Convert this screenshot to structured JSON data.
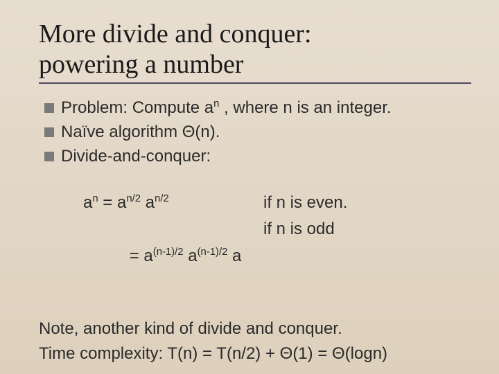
{
  "colors": {
    "background_top": "#e8ded0",
    "background_bottom": "#ddd0bc",
    "title_color": "#1a1a1a",
    "rule_color": "#4a4a5a",
    "bullet_marker": "#7a7a7a",
    "text_color": "#2a2a2a"
  },
  "typography": {
    "title_font": "Times New Roman",
    "title_fontsize_pt": 28,
    "body_font": "Arial",
    "body_fontsize_pt": 18,
    "sup_scale": 0.62
  },
  "title": {
    "line1": "More divide and conquer:",
    "line2": "powering a number"
  },
  "bullets": [
    {
      "pre": "Problem: Compute a",
      "sup": "n",
      "post": " , where n is an integer."
    },
    {
      "pre": "Naïve algorithm Θ(n).",
      "sup": "",
      "post": ""
    },
    {
      "pre": "Divide-and-conquer:",
      "sup": "",
      "post": ""
    }
  ],
  "formulas": [
    {
      "lhs_base1": "a",
      "lhs_sup1": "n",
      "lhs_eq": " = ",
      "lhs_base2": "a",
      "lhs_sup2": "n/2",
      "lhs_sep": " ",
      "lhs_base3": "a",
      "lhs_sup3": "n/2",
      "lhs_tail": "",
      "cond": "if n is even."
    },
    {
      "lhs_base1": "",
      "lhs_sup1": "",
      "lhs_eq": "    = ",
      "lhs_base2": "a",
      "lhs_sup2": "(n-1)/2",
      "lhs_sep": " ",
      "lhs_base3": "a",
      "lhs_sup3": "(n-1)/2",
      "lhs_tail": " a",
      "cond": "if n is odd"
    }
  ],
  "notes": {
    "line1": "Note, another kind of divide and conquer.",
    "line2": "Time complexity: T(n) = T(n/2) + Θ(1) = Θ(logn)"
  }
}
